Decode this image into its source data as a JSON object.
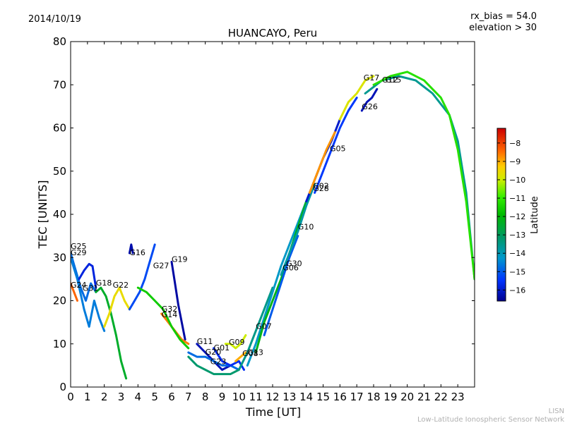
{
  "chart_data": {
    "type": "line",
    "title": "HUANCAYO, Peru",
    "date": "2014/10/19",
    "annotations": [
      "rx_bias = 54.0",
      "elevation > 30"
    ],
    "xlabel": "Time [UT]",
    "ylabel": "TEC [UNITS]",
    "xlim": [
      0,
      24
    ],
    "ylim": [
      0,
      80
    ],
    "xticks": [
      "0",
      "1",
      "2",
      "3",
      "4",
      "5",
      "6",
      "7",
      "8",
      "9",
      "10",
      "11",
      "12",
      "13",
      "14",
      "15",
      "16",
      "17",
      "18",
      "19",
      "20",
      "21",
      "22",
      "23"
    ],
    "yticks": [
      "0",
      "10",
      "20",
      "30",
      "40",
      "50",
      "60",
      "70",
      "80"
    ],
    "colorbar": {
      "label": "Latitude",
      "range": [
        -16.6,
        -7.2
      ],
      "ticks": [
        "−8",
        "−9",
        "−10",
        "−11",
        "−12",
        "−13",
        "−14",
        "−15",
        "−16"
      ],
      "tick_values": [
        -8,
        -9,
        -10,
        -11,
        -12,
        -13,
        -14,
        -15,
        -16
      ]
    },
    "footer": {
      "line1": "LISN",
      "line2": "Low-Latitude Ionospheric Sensor Network"
    },
    "series": [
      {
        "name": "G25",
        "label_at": [
          0.0,
          32.0
        ],
        "lat": -14.8,
        "x": [
          0,
          0.3,
          0.6,
          0.9,
          1.2,
          1.5
        ],
        "y": [
          31,
          27,
          23,
          20,
          24,
          22
        ]
      },
      {
        "name": "G29",
        "label_at": [
          0.0,
          30.5
        ],
        "lat": -14.6,
        "x": [
          0,
          0.4,
          0.8,
          1.1,
          1.4,
          1.7,
          2.0
        ],
        "y": [
          30,
          25,
          18,
          14,
          20,
          16,
          13
        ]
      },
      {
        "name": "G24",
        "label_at": [
          0.0,
          23.0
        ],
        "lat": -8.4,
        "x": [
          0,
          0.2,
          0.4
        ],
        "y": [
          24,
          22,
          20
        ]
      },
      {
        "name": "G31",
        "label_at": [
          0.7,
          22.3
        ],
        "lat": -15.8,
        "x": [
          0.5,
          0.8,
          1.1,
          1.3,
          1.5
        ],
        "y": [
          25,
          27,
          28.5,
          28,
          23
        ]
      },
      {
        "name": "G18",
        "label_at": [
          1.5,
          23.5
        ],
        "lat": -12.4,
        "x": [
          1.5,
          1.8,
          2.1,
          2.4,
          2.7,
          3.0,
          3.3
        ],
        "y": [
          22,
          23,
          21,
          17,
          12,
          6,
          2
        ]
      },
      {
        "name": "G22",
        "label_at": [
          2.5,
          23.0
        ],
        "lat": -9.6,
        "x": [
          2.0,
          2.3,
          2.6,
          2.9,
          3.2,
          3.5
        ],
        "y": [
          14,
          17,
          21,
          23,
          20,
          18
        ]
      },
      {
        "name": "G16",
        "label_at": [
          3.5,
          30.5
        ],
        "lat": -16.3,
        "x": [
          3.5,
          3.6,
          3.7
        ],
        "y": [
          31,
          33,
          31
        ]
      },
      {
        "name": "G27",
        "label_at": [
          4.9,
          27.5
        ],
        "lat": -15.2,
        "x": [
          3.5,
          3.8,
          4.1,
          4.4,
          4.7,
          5.0
        ],
        "y": [
          18,
          20,
          22,
          25,
          29,
          33
        ]
      },
      {
        "name": "G19",
        "label_at": [
          6.0,
          29.0
        ],
        "lat": -16.4,
        "x": [
          6.0,
          6.2,
          6.4,
          6.6,
          6.8
        ],
        "y": [
          29,
          24,
          19,
          15,
          11
        ]
      },
      {
        "name": "G32",
        "label_at": [
          5.4,
          17.5
        ],
        "lat": -8.6,
        "x": [
          5.4,
          5.8,
          6.2,
          6.6,
          7.0
        ],
        "y": [
          17,
          15,
          13,
          11,
          10
        ]
      },
      {
        "name": "G14",
        "label_at": [
          5.4,
          16.2
        ],
        "lat": -11.6,
        "x": [
          4.0,
          4.5,
          5.0,
          5.5,
          6.0,
          6.5,
          7.0
        ],
        "y": [
          23,
          22,
          20,
          18,
          14,
          11,
          9
        ]
      },
      {
        "name": "G11",
        "label_at": [
          7.5,
          10.0
        ],
        "lat": -16.2,
        "x": [
          7.5,
          8.0,
          8.5,
          9.0,
          9.5
        ],
        "y": [
          10,
          8,
          6,
          4,
          5
        ]
      },
      {
        "name": "G20",
        "label_at": [
          8.0,
          7.5
        ],
        "lat": -14.8,
        "x": [
          7.0,
          7.5,
          8.0,
          8.5,
          9.0,
          9.5,
          10.0
        ],
        "y": [
          8,
          7,
          7,
          6,
          5,
          5,
          4
        ]
      },
      {
        "name": "G01",
        "label_at": [
          8.5,
          8.5
        ],
        "lat": -15.6,
        "x": [
          8.5,
          9.0,
          9.5,
          10.0,
          10.3
        ],
        "y": [
          9,
          6,
          5,
          6,
          4
        ]
      },
      {
        "name": "G23",
        "label_at": [
          8.3,
          5.3
        ],
        "lat": -13.2,
        "x": [
          7.0,
          7.5,
          8.0,
          8.5,
          9.0,
          9.5,
          10.0
        ],
        "y": [
          7,
          5,
          4,
          3,
          3,
          3,
          4
        ]
      },
      {
        "name": "G09",
        "label_at": [
          9.4,
          9.8
        ],
        "lat": -10.0,
        "x": [
          9.2,
          9.5,
          9.8,
          10.1,
          10.4
        ],
        "y": [
          10,
          10,
          9,
          10,
          12
        ]
      },
      {
        "name": "G08",
        "label_at": [
          10.2,
          7.2
        ],
        "lat": -9.0,
        "x": [
          9.8,
          10.1,
          10.4
        ],
        "y": [
          6,
          7,
          8
        ]
      },
      {
        "name": "G13",
        "label_at": [
          10.5,
          7.4
        ],
        "lat": -13.5,
        "x": [
          10.0,
          10.5,
          11.0,
          11.5,
          12.0
        ],
        "y": [
          4,
          8,
          13,
          18,
          23
        ]
      },
      {
        "name": "G07",
        "label_at": [
          11.0,
          13.5
        ],
        "lat": -14.2,
        "x": [
          10.5,
          11.0,
          11.5,
          12.0,
          12.5,
          13.0,
          13.5,
          14.0
        ],
        "y": [
          5,
          10,
          16,
          22,
          28,
          33,
          38,
          43
        ]
      },
      {
        "name": "G30",
        "label_at": [
          12.8,
          28.0
        ],
        "lat": -12.2,
        "x": [
          11.0,
          11.5,
          12.0,
          12.5,
          13.0,
          13.5,
          14.0
        ],
        "y": [
          8,
          15,
          20,
          25,
          31,
          37,
          43
        ]
      },
      {
        "name": "G06",
        "label_at": [
          12.6,
          27.0
        ],
        "lat": -15.0,
        "x": [
          11.5,
          12.0,
          12.5,
          13.0,
          13.5
        ],
        "y": [
          12,
          18,
          24,
          30,
          35
        ]
      },
      {
        "name": "G10",
        "label_at": [
          13.5,
          36.5
        ],
        "lat": -13.8,
        "x": [
          12.5,
          13.0,
          13.5,
          14.0,
          14.5
        ],
        "y": [
          26,
          31,
          36,
          42,
          47
        ]
      },
      {
        "name": "G02",
        "label_at": [
          14.4,
          46.0
        ],
        "lat": -16.0,
        "x": [
          14.0,
          14.5,
          15.0,
          15.5,
          16.0
        ],
        "y": [
          43,
          48,
          53,
          57,
          62
        ]
      },
      {
        "name": "G28",
        "label_at": [
          14.4,
          45.4
        ],
        "lat": -8.8,
        "x": [
          14.2,
          14.7,
          15.2,
          15.7
        ],
        "y": [
          45,
          50,
          55,
          59
        ]
      },
      {
        "name": "G05",
        "label_at": [
          15.4,
          54.6
        ],
        "lat": -15.4,
        "x": [
          14.5,
          15.0,
          15.5,
          16.0,
          16.5,
          17.0
        ],
        "y": [
          45,
          50,
          55,
          60,
          64,
          67
        ]
      },
      {
        "name": "G26",
        "label_at": [
          17.3,
          64.3
        ],
        "lat": -16.2,
        "x": [
          17.3,
          17.6,
          17.9,
          18.2
        ],
        "y": [
          64,
          66,
          67,
          69
        ]
      },
      {
        "name": "G17",
        "label_at": [
          17.4,
          71.0
        ],
        "lat": -9.8,
        "x": [
          16.0,
          16.5,
          17.0,
          17.5,
          18.0
        ],
        "y": [
          62,
          66,
          68,
          71,
          72
        ]
      },
      {
        "name": "G12",
        "label_at": [
          18.5,
          70.5
        ],
        "lat": -13.6,
        "x": [
          17.5,
          18.5,
          19.5,
          20.5,
          21.5,
          22.5,
          23.0,
          23.5,
          24.0
        ],
        "y": [
          68,
          71,
          72,
          71,
          68,
          63,
          57,
          45,
          25
        ]
      },
      {
        "name": "G15",
        "label_at": [
          18.7,
          70.5
        ],
        "lat": -11.2,
        "x": [
          18.0,
          19.0,
          20.0,
          21.0,
          22.0,
          22.5,
          23.0,
          23.5,
          24.0
        ],
        "y": [
          70,
          72,
          73,
          71,
          67,
          63,
          55,
          43,
          25
        ]
      }
    ]
  }
}
